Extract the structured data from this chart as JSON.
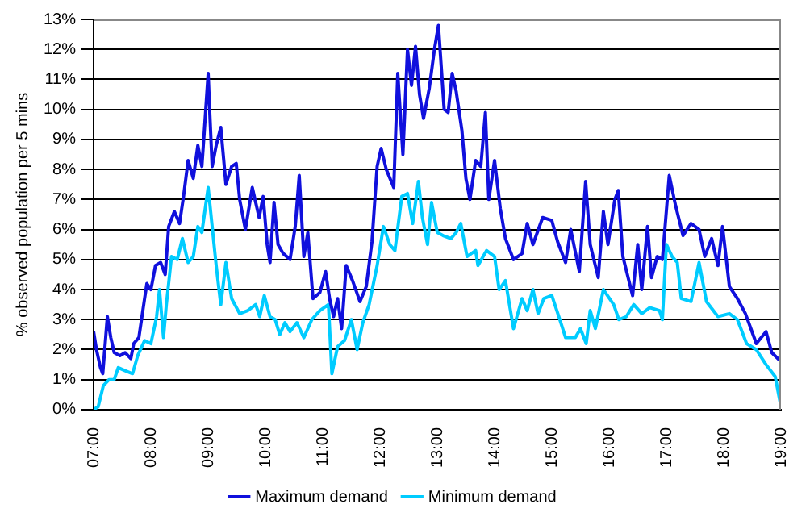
{
  "chart_data": {
    "type": "line",
    "ylabel": "% observed population per 5 mins",
    "legend": "bottom",
    "grid": "y",
    "marker": "none",
    "line_style": "solid",
    "xlim": [
      7,
      19
    ],
    "ylim": [
      0,
      13
    ],
    "xticks": [
      {
        "value": 7,
        "label": "07:00"
      },
      {
        "value": 8,
        "label": "08:00"
      },
      {
        "value": 9,
        "label": "09:00"
      },
      {
        "value": 10,
        "label": "10:00"
      },
      {
        "value": 11,
        "label": "11:00"
      },
      {
        "value": 12,
        "label": "12:00"
      },
      {
        "value": 13,
        "label": "13:00"
      },
      {
        "value": 14,
        "label": "14:00"
      },
      {
        "value": 15,
        "label": "15:00"
      },
      {
        "value": 16,
        "label": "16:00"
      },
      {
        "value": 17,
        "label": "17:00"
      },
      {
        "value": 18,
        "label": "18:00"
      },
      {
        "value": 19,
        "label": "19:00"
      }
    ],
    "yticks": [
      {
        "value": 0,
        "label": "0%"
      },
      {
        "value": 1,
        "label": "1%"
      },
      {
        "value": 2,
        "label": "2%"
      },
      {
        "value": 3,
        "label": "3%"
      },
      {
        "value": 4,
        "label": "4%"
      },
      {
        "value": 5,
        "label": "5%"
      },
      {
        "value": 6,
        "label": "6%"
      },
      {
        "value": 7,
        "label": "7%"
      },
      {
        "value": 8,
        "label": "8%"
      },
      {
        "value": 9,
        "label": "9%"
      },
      {
        "value": 10,
        "label": "10%"
      },
      {
        "value": 11,
        "label": "11%"
      },
      {
        "value": 12,
        "label": "12%"
      },
      {
        "value": 13,
        "label": "13%"
      }
    ],
    "series": [
      {
        "name": "Maximum demand",
        "color": "#1010dd",
        "x": [
          7,
          7.05,
          7.12,
          7.16,
          7.24,
          7.3,
          7.36,
          7.46,
          7.55,
          7.65,
          7.7,
          7.79,
          7.89,
          7.93,
          8,
          8.08,
          8.17,
          8.25,
          8.31,
          8.41,
          8.5,
          8.57,
          8.65,
          8.74,
          8.82,
          8.89,
          8.93,
          9,
          9.03,
          9.07,
          9.14,
          9.22,
          9.31,
          9.41,
          9.49,
          9.55,
          9.65,
          9.77,
          9.89,
          9.96,
          10.03,
          10.08,
          10.15,
          10.22,
          10.31,
          10.43,
          10.52,
          10.59,
          10.67,
          10.74,
          10.83,
          10.95,
          11.05,
          11.12,
          11.19,
          11.26,
          11.33,
          11.41,
          11.52,
          11.65,
          11.76,
          11.86,
          11.95,
          12.02,
          12.11,
          12.24,
          12.31,
          12.4,
          12.48,
          12.55,
          12.62,
          12.69,
          12.76,
          12.86,
          12.95,
          13.02,
          13.12,
          13.19,
          13.26,
          13.33,
          13.43,
          13.5,
          13.57,
          13.67,
          13.76,
          13.84,
          13.9,
          14,
          14.1,
          14.19,
          14.33,
          14.48,
          14.57,
          14.67,
          14.84,
          15,
          15.1,
          15.24,
          15.33,
          15.48,
          15.59,
          15.67,
          15.81,
          15.9,
          15.98,
          16.1,
          16.16,
          16.24,
          16.41,
          16.5,
          16.57,
          16.67,
          16.74,
          16.84,
          16.93,
          17.05,
          17.16,
          17.29,
          17.43,
          17.57,
          17.67,
          17.79,
          17.9,
          17.98,
          18.1,
          18.24,
          18.38,
          18.57,
          18.74,
          18.84,
          19
        ],
        "values": [
          2.6,
          2,
          1.4,
          1.2,
          3.1,
          2.4,
          1.9,
          1.8,
          1.9,
          1.7,
          2.2,
          2.4,
          3.7,
          4.2,
          4,
          4.8,
          4.9,
          4.5,
          6.1,
          6.6,
          6.2,
          7.1,
          8.3,
          7.7,
          8.8,
          8.1,
          9.2,
          11.2,
          9.8,
          8.1,
          8.8,
          9.4,
          7.5,
          8.1,
          8.2,
          7,
          6,
          7.4,
          6.4,
          7.1,
          5.5,
          4.9,
          6.9,
          5.5,
          5.2,
          5,
          6.1,
          7.8,
          5.1,
          5.9,
          3.7,
          3.9,
          4.6,
          3.7,
          3.1,
          3.7,
          2.7,
          4.8,
          4.3,
          3.6,
          4.1,
          5.6,
          8.1,
          8.7,
          8,
          7.4,
          11.2,
          8.5,
          12,
          10.8,
          12.1,
          10.5,
          9.7,
          10.7,
          12,
          12.8,
          10,
          9.9,
          11.2,
          10.6,
          9.3,
          7.7,
          7,
          8.3,
          8.1,
          9.9,
          7,
          8.3,
          6.7,
          5.7,
          5,
          5.2,
          6.2,
          5.5,
          6.4,
          6.3,
          5.6,
          4.9,
          6,
          4.6,
          7.6,
          5.5,
          4.4,
          6.6,
          5.5,
          7,
          7.3,
          5.1,
          3.8,
          5.5,
          4,
          6.1,
          4.4,
          5.1,
          5,
          7.8,
          6.8,
          5.8,
          6.2,
          6,
          5.1,
          5.7,
          4.8,
          6.1,
          4.1,
          3.7,
          3.2,
          2.2,
          2.6,
          1.9,
          1.6
        ]
      },
      {
        "name": "Minimum demand",
        "color": "#00ccff",
        "x": [
          7,
          7.08,
          7.17,
          7.27,
          7.36,
          7.43,
          7.55,
          7.68,
          7.77,
          7.89,
          8,
          8.1,
          8.15,
          8.22,
          8.27,
          8.36,
          8.46,
          8.55,
          8.65,
          8.74,
          8.82,
          8.89,
          9,
          9.07,
          9.14,
          9.22,
          9.31,
          9.41,
          9.55,
          9.69,
          9.83,
          9.9,
          9.98,
          10.08,
          10.17,
          10.25,
          10.34,
          10.43,
          10.55,
          10.67,
          10.81,
          10.95,
          11.1,
          11.16,
          11.26,
          11.38,
          11.5,
          11.6,
          11.7,
          11.81,
          11.95,
          12.06,
          12.17,
          12.26,
          12.38,
          12.48,
          12.57,
          12.67,
          12.74,
          12.83,
          12.9,
          13,
          13.1,
          13.24,
          13.33,
          13.41,
          13.52,
          13.67,
          13.71,
          13.86,
          14,
          14.08,
          14.19,
          14.33,
          14.48,
          14.57,
          14.67,
          14.76,
          14.86,
          15,
          15.14,
          15.24,
          15.41,
          15.5,
          15.6,
          15.67,
          15.76,
          15.9,
          16.08,
          16.17,
          16.3,
          16.43,
          16.57,
          16.71,
          16.88,
          16.93,
          17,
          17.1,
          17.19,
          17.26,
          17.43,
          17.57,
          17.7,
          17.9,
          18.1,
          18.24,
          18.4,
          18.57,
          18.74,
          18.9,
          19
        ],
        "values": [
          0,
          0.1,
          0.8,
          1,
          1,
          1.4,
          1.3,
          1.2,
          1.8,
          2.3,
          2.2,
          3.1,
          4,
          2.4,
          3.5,
          5.1,
          5,
          5.7,
          4.9,
          5.1,
          6.1,
          5.9,
          7.4,
          6.1,
          4.8,
          3.5,
          4.9,
          3.7,
          3.2,
          3.3,
          3.5,
          3.1,
          3.8,
          3.1,
          3,
          2.5,
          2.9,
          2.6,
          2.9,
          2.4,
          3,
          3.3,
          3.5,
          1.2,
          2.1,
          2.3,
          3,
          2,
          2.9,
          3.5,
          4.8,
          6.1,
          5.5,
          5.3,
          7.1,
          7.2,
          6.2,
          7.6,
          6.4,
          5.5,
          6.9,
          5.9,
          5.8,
          5.7,
          5.9,
          6.2,
          5.1,
          5.3,
          4.8,
          5.3,
          5.1,
          4,
          4.3,
          2.7,
          3.7,
          3.3,
          4,
          3.2,
          3.7,
          3.8,
          3,
          2.4,
          2.4,
          2.7,
          2.2,
          3.3,
          2.7,
          4,
          3.5,
          3,
          3.1,
          3.5,
          3.2,
          3.4,
          3.3,
          3,
          5.5,
          5.1,
          4.9,
          3.7,
          3.6,
          4.9,
          3.6,
          3.1,
          3.2,
          3,
          2.2,
          2,
          1.5,
          1.1,
          0.1
        ]
      }
    ]
  }
}
